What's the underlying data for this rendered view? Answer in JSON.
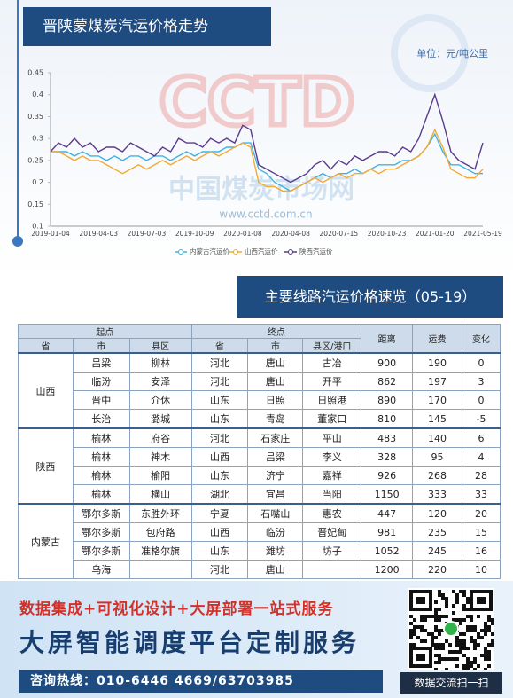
{
  "chart_data": {
    "type": "line",
    "title": "晋陕蒙煤炭汽运价格走势",
    "unit": "单位：元/吨公里",
    "watermark": [
      "CCTD",
      "中国煤炭市场网",
      "www.cctd.com.cn"
    ],
    "categories": [
      "2019-01-04",
      null,
      null,
      null,
      null,
      null,
      "2019-04-03",
      null,
      null,
      null,
      null,
      null,
      "2019-07-03",
      null,
      null,
      null,
      null,
      null,
      "2019-10-09",
      null,
      null,
      null,
      null,
      null,
      "2020-01-08",
      null,
      null,
      null,
      null,
      null,
      "2020-04-08",
      null,
      null,
      null,
      null,
      null,
      "2020-07-15",
      null,
      null,
      null,
      null,
      null,
      "2020-10-23",
      null,
      null,
      null,
      null,
      null,
      "2021-01-20",
      null,
      null,
      null,
      null,
      null,
      "2021-05-19"
    ],
    "series": [
      {
        "name": "内蒙古汽运价",
        "color": "#3fb2e3",
        "values": [
          0.27,
          0.27,
          0.27,
          0.26,
          0.27,
          0.26,
          0.26,
          0.25,
          0.26,
          0.25,
          0.26,
          0.26,
          0.25,
          0.26,
          0.26,
          0.25,
          0.26,
          0.27,
          0.26,
          0.27,
          0.27,
          0.27,
          0.28,
          0.28,
          0.29,
          0.29,
          0.23,
          0.22,
          0.2,
          0.19,
          0.18,
          0.19,
          0.2,
          0.21,
          0.22,
          0.21,
          0.22,
          0.22,
          0.23,
          0.22,
          0.23,
          0.24,
          0.24,
          0.24,
          0.25,
          0.25,
          0.26,
          0.28,
          0.31,
          0.27,
          0.24,
          0.24,
          0.23,
          0.22,
          0.22
        ]
      },
      {
        "name": "山西汽运价",
        "color": "#f5a833",
        "values": [
          0.27,
          0.27,
          0.26,
          0.25,
          0.26,
          0.25,
          0.25,
          0.24,
          0.23,
          0.22,
          0.23,
          0.24,
          0.23,
          0.24,
          0.25,
          0.24,
          0.25,
          0.26,
          0.25,
          0.26,
          0.27,
          0.26,
          0.27,
          0.28,
          0.29,
          0.28,
          0.2,
          0.19,
          0.19,
          0.18,
          0.18,
          0.19,
          0.2,
          0.21,
          0.2,
          0.21,
          0.22,
          0.21,
          0.22,
          0.22,
          0.23,
          0.22,
          0.23,
          0.23,
          0.24,
          0.25,
          0.26,
          0.28,
          0.32,
          0.28,
          0.23,
          0.22,
          0.21,
          0.21,
          0.23
        ]
      },
      {
        "name": "陕西汽运价",
        "color": "#5a3c8c",
        "values": [
          0.27,
          0.29,
          0.28,
          0.3,
          0.28,
          0.29,
          0.27,
          0.28,
          0.28,
          0.27,
          0.29,
          0.28,
          0.27,
          0.26,
          0.28,
          0.27,
          0.3,
          0.29,
          0.29,
          0.28,
          0.3,
          0.29,
          0.3,
          0.29,
          0.33,
          0.32,
          0.24,
          0.23,
          0.22,
          0.21,
          0.2,
          0.21,
          0.22,
          0.24,
          0.25,
          0.23,
          0.25,
          0.24,
          0.26,
          0.25,
          0.26,
          0.27,
          0.27,
          0.26,
          0.28,
          0.27,
          0.3,
          0.35,
          0.4,
          0.34,
          0.27,
          0.25,
          0.24,
          0.23,
          0.29
        ]
      }
    ],
    "ylim": [
      0.1,
      0.45
    ],
    "yticks": [
      0.1,
      0.15,
      0.2,
      0.25,
      0.3,
      0.35,
      0.4,
      0.45
    ],
    "grid": false,
    "legend": "bottom"
  },
  "table": {
    "title": "主要线路汽运价格速览（05-19）",
    "group_headers": [
      "起点",
      "终点",
      "距离",
      "运费",
      "变化"
    ],
    "sub_headers": [
      "省",
      "市",
      "县区",
      "省",
      "市",
      "县区/港口"
    ],
    "groups": [
      {
        "province": "山西",
        "rows": [
          [
            "吕梁",
            "柳林",
            "河北",
            "唐山",
            "古冶",
            900,
            190,
            0
          ],
          [
            "临汾",
            "安泽",
            "河北",
            "唐山",
            "开平",
            862,
            197,
            3
          ],
          [
            "晋中",
            "介休",
            "山东",
            "日照",
            "日照港",
            890,
            170,
            0
          ],
          [
            "长治",
            "潞城",
            "山东",
            "青岛",
            "董家口",
            810,
            145,
            -5
          ]
        ]
      },
      {
        "province": "陕西",
        "rows": [
          [
            "榆林",
            "府谷",
            "河北",
            "石家庄",
            "平山",
            483,
            140,
            6
          ],
          [
            "榆林",
            "神木",
            "山西",
            "吕梁",
            "李义",
            328,
            95,
            4
          ],
          [
            "榆林",
            "榆阳",
            "山东",
            "济宁",
            "嘉祥",
            926,
            268,
            28
          ],
          [
            "榆林",
            "横山",
            "湖北",
            "宜昌",
            "当阳",
            1150,
            333,
            33
          ]
        ]
      },
      {
        "province": "内蒙古",
        "rows": [
          [
            "鄂尔多斯",
            "东胜外环",
            "宁夏",
            "石嘴山",
            "惠农",
            447,
            120,
            20
          ],
          [
            "鄂尔多斯",
            "包府路",
            "山西",
            "临汾",
            "晋妃甸",
            981,
            235,
            15
          ],
          [
            "鄂尔多斯",
            "准格尔旗",
            "山东",
            "潍坊",
            "坊子",
            1052,
            245,
            16
          ],
          [
            "乌海",
            null,
            "河北",
            "唐山",
            null,
            1200,
            220,
            10
          ]
        ]
      }
    ]
  },
  "banner": {
    "slogan": "数据集成+可视化设计+大屏部署一站式服务",
    "headline": "大屏智能调度平台定制服务",
    "hotline": "咨询热线：010-6446 4669/63703985",
    "qr_caption": "数据交流扫一扫"
  }
}
